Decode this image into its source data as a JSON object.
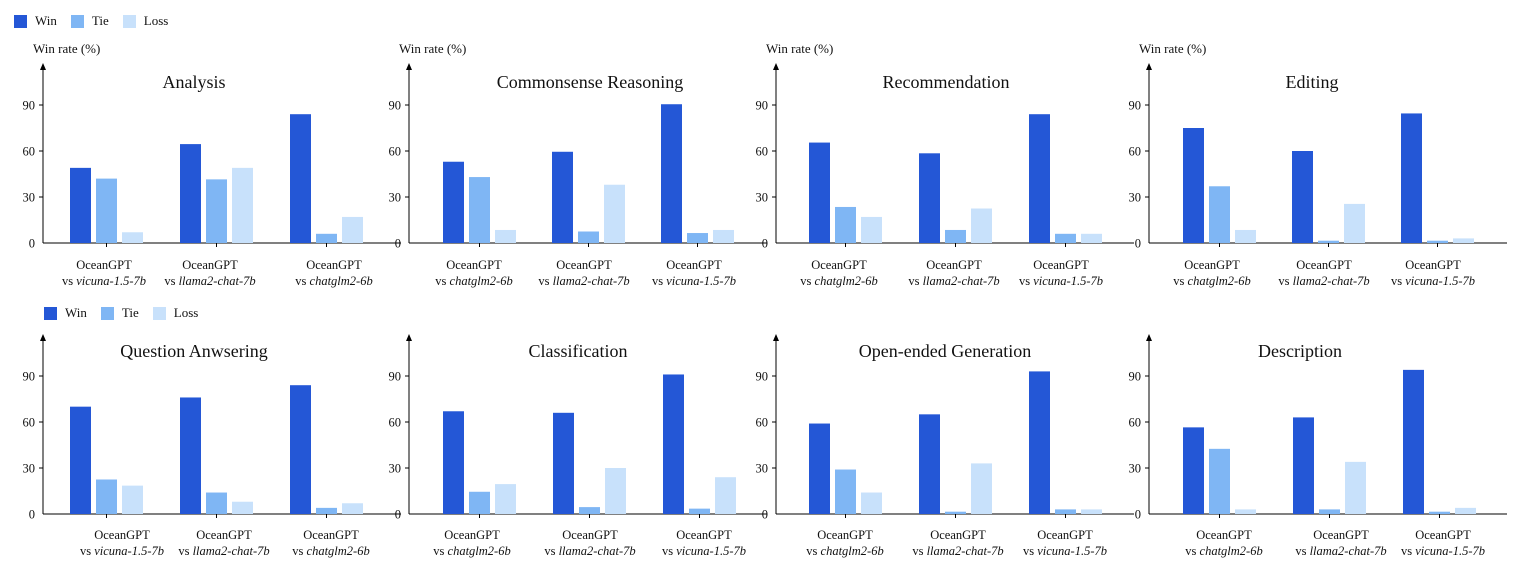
{
  "legend": {
    "row1": [
      {
        "label": "Win",
        "color": "#2457d6"
      },
      {
        "label": "Tie",
        "color": "#7fb6f4"
      },
      {
        "label": "Loss",
        "color": "#c8e1fb"
      }
    ],
    "row2": [
      {
        "label": "Win",
        "color": "#2457d6"
      },
      {
        "label": "Tie",
        "color": "#7fb6f4"
      },
      {
        "label": "Loss",
        "color": "#c8e1fb"
      }
    ]
  },
  "colors": {
    "win": "#2457d6",
    "tie": "#7fb6f4",
    "loss": "#c8e1fb"
  },
  "top_ylabels": [
    "Win rate (%)",
    "Win rate (%)",
    "Win rate (%)",
    "Win rate (%)"
  ],
  "chart_data": [
    {
      "type": "bar",
      "title": "Analysis",
      "ylabel": "Win rate (%)",
      "ylim": [
        0,
        115
      ],
      "yticks": [
        0,
        30,
        60,
        90
      ],
      "categories": [
        {
          "line1": "OceanGPT",
          "prefix": "vs ",
          "model": "vicuna-1.5-7b"
        },
        {
          "line1": "OceanGPT",
          "prefix": "vs ",
          "model": "llama2-chat-7b"
        },
        {
          "line1": "OceanGPT",
          "prefix": "vs ",
          "model": "chatglm2-6b"
        }
      ],
      "series": [
        {
          "name": "Win",
          "values": [
            49,
            64.5,
            84
          ]
        },
        {
          "name": "Tie",
          "values": [
            42,
            41.5,
            6
          ]
        },
        {
          "name": "Loss",
          "values": [
            7,
            49,
            17
          ]
        }
      ]
    },
    {
      "type": "bar",
      "title": "Commonsense Reasoning",
      "ylabel": "Win rate (%)",
      "ylim": [
        0,
        115
      ],
      "yticks": [
        0,
        30,
        60,
        90
      ],
      "categories": [
        {
          "line1": "OceanGPT",
          "prefix": "vs ",
          "model": "chatglm2-6b"
        },
        {
          "line1": "OceanGPT",
          "prefix": "vs ",
          "model": "llama2-chat-7b"
        },
        {
          "line1": "OceanGPT",
          "prefix": "vs ",
          "model": "vicuna-1.5-7b"
        }
      ],
      "series": [
        {
          "name": "Win",
          "values": [
            53,
            59.5,
            90.5
          ]
        },
        {
          "name": "Tie",
          "values": [
            43,
            7.5,
            6.5
          ]
        },
        {
          "name": "Loss",
          "values": [
            8.5,
            38,
            8.5
          ]
        }
      ]
    },
    {
      "type": "bar",
      "title": "Recommendation",
      "ylabel": "Win rate (%)",
      "ylim": [
        0,
        115
      ],
      "yticks": [
        0,
        30,
        60,
        90
      ],
      "categories": [
        {
          "line1": "OceanGPT",
          "prefix": "vs ",
          "model": "chatglm2-6b"
        },
        {
          "line1": "OceanGPT",
          "prefix": "vs ",
          "model": "llama2-chat-7b"
        },
        {
          "line1": "OceanGPT",
          "prefix": "vs ",
          "model": "vicuna-1.5-7b"
        }
      ],
      "series": [
        {
          "name": "Win",
          "values": [
            65.5,
            58.5,
            84
          ]
        },
        {
          "name": "Tie",
          "values": [
            23.5,
            8.5,
            6
          ]
        },
        {
          "name": "Loss",
          "values": [
            17,
            22.5,
            6
          ]
        }
      ]
    },
    {
      "type": "bar",
      "title": "Editing",
      "ylabel": "Win rate (%)",
      "ylim": [
        0,
        115
      ],
      "yticks": [
        0,
        30,
        60,
        90
      ],
      "categories": [
        {
          "line1": "OceanGPT",
          "prefix": "vs ",
          "model": "chatglm2-6b"
        },
        {
          "line1": "OceanGPT",
          "prefix": "vs ",
          "model": "llama2-chat-7b"
        },
        {
          "line1": "OceanGPT",
          "prefix": "vs ",
          "model": "vicuna-1.5-7b"
        }
      ],
      "series": [
        {
          "name": "Win",
          "values": [
            75,
            60,
            84.5
          ]
        },
        {
          "name": "Tie",
          "values": [
            37,
            1.5,
            1.5
          ]
        },
        {
          "name": "Loss",
          "values": [
            8.5,
            25.5,
            3
          ]
        }
      ]
    },
    {
      "type": "bar",
      "title": "Question Anwsering",
      "ylim": [
        0,
        115
      ],
      "yticks": [
        0,
        30,
        60,
        90
      ],
      "categories": [
        {
          "line1": "OceanGPT",
          "prefix": "vs ",
          "model": "vicuna-1.5-7b"
        },
        {
          "line1": "OceanGPT",
          "prefix": "vs ",
          "model": "llama2-chat-7b"
        },
        {
          "line1": "OceanGPT",
          "prefix": "vs ",
          "model": "chatglm2-6b"
        }
      ],
      "series": [
        {
          "name": "Win",
          "values": [
            70,
            76,
            84
          ]
        },
        {
          "name": "Tie",
          "values": [
            22.5,
            14,
            4
          ]
        },
        {
          "name": "Loss",
          "values": [
            18.5,
            8,
            7
          ]
        }
      ]
    },
    {
      "type": "bar",
      "title": "Classification",
      "ylim": [
        0,
        115
      ],
      "yticks": [
        0,
        30,
        60,
        90
      ],
      "categories": [
        {
          "line1": "OceanGPT",
          "prefix": "vs ",
          "model": "chatglm2-6b"
        },
        {
          "line1": "OceanGPT",
          "prefix": "vs ",
          "model": "llama2-chat-7b"
        },
        {
          "line1": "OceanGPT",
          "prefix": "vs ",
          "model": "vicuna-1.5-7b"
        }
      ],
      "series": [
        {
          "name": "Win",
          "values": [
            67,
            66,
            91
          ]
        },
        {
          "name": "Tie",
          "values": [
            14.5,
            4.5,
            3.5
          ]
        },
        {
          "name": "Loss",
          "values": [
            19.5,
            30,
            24
          ]
        }
      ]
    },
    {
      "type": "bar",
      "title": "Open-ended Generation",
      "ylim": [
        0,
        115
      ],
      "yticks": [
        0,
        30,
        60,
        90
      ],
      "categories": [
        {
          "line1": "OceanGPT",
          "prefix": "vs ",
          "model": "chatglm2-6b"
        },
        {
          "line1": "OceanGPT",
          "prefix": "vs ",
          "model": "llama2-chat-7b"
        },
        {
          "line1": "OceanGPT",
          "prefix": "vs ",
          "model": "vicuna-1.5-7b"
        }
      ],
      "series": [
        {
          "name": "Win",
          "values": [
            59,
            65,
            93
          ]
        },
        {
          "name": "Tie",
          "values": [
            29,
            1.5,
            3
          ]
        },
        {
          "name": "Loss",
          "values": [
            14,
            33,
            3
          ]
        }
      ]
    },
    {
      "type": "bar",
      "title": "Description",
      "ylim": [
        0,
        115
      ],
      "yticks": [
        0,
        30,
        60,
        90
      ],
      "categories": [
        {
          "line1": "OceanGPT",
          "prefix": "vs ",
          "model": "chatglm2-6b"
        },
        {
          "line1": "OceanGPT",
          "prefix": "vs ",
          "model": "llama2-chat-7b"
        },
        {
          "line1": "OceanGPT",
          "prefix": "vs ",
          "model": "vicuna-1.5-7b"
        }
      ],
      "series": [
        {
          "name": "Win",
          "values": [
            56.5,
            63,
            94
          ]
        },
        {
          "name": "Tie",
          "values": [
            42.5,
            3,
            1.5
          ]
        },
        {
          "name": "Loss",
          "values": [
            3,
            34,
            4
          ]
        }
      ]
    }
  ]
}
